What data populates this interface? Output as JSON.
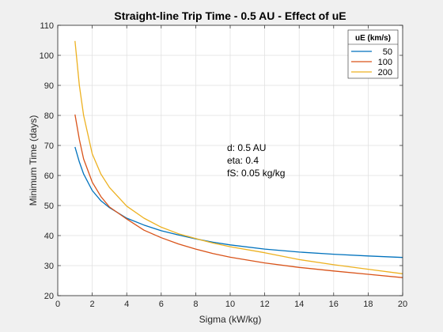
{
  "chart_data": {
    "type": "line",
    "title": "Straight-line Trip Time - 0.5 AU - Effect of uE",
    "xlabel": "Sigma (kW/kg)",
    "ylabel": "Minimum Time (days)",
    "xlim": [
      0,
      20
    ],
    "ylim": [
      20,
      110
    ],
    "xticks": [
      "0",
      "2",
      "4",
      "6",
      "8",
      "10",
      "12",
      "14",
      "16",
      "18",
      "20"
    ],
    "yticks": [
      "20",
      "30",
      "40",
      "50",
      "60",
      "70",
      "80",
      "90",
      "100",
      "110"
    ],
    "grid": true,
    "legend": {
      "title": "uE (km/s)",
      "placement": "top-right"
    },
    "annotation": [
      "d:   0.5 AU",
      "eta:  0.4",
      "fS:  0.05 kg/kg"
    ],
    "x": [
      1,
      1.25,
      1.5,
      2,
      2.5,
      3,
      4,
      5,
      6,
      7,
      8,
      9,
      10,
      12,
      14,
      16,
      18,
      20
    ],
    "series": [
      {
        "name": "50",
        "color": "#0072BD",
        "values": [
          69.5,
          64.5,
          60.5,
          55,
          51.6,
          49.3,
          45.8,
          43.5,
          41.6,
          40.2,
          38.9,
          37.8,
          36.9,
          35.5,
          34.5,
          33.8,
          33.2,
          32.7
        ]
      },
      {
        "name": "100",
        "color": "#D95319",
        "values": [
          80.3,
          72,
          65.5,
          57.8,
          53,
          49.5,
          45.5,
          41.8,
          39.3,
          37.2,
          35.5,
          34,
          32.8,
          30.9,
          29.4,
          28.2,
          27.1,
          26
        ]
      },
      {
        "name": "200",
        "color": "#EDB120",
        "values": [
          104.8,
          90,
          80,
          67.2,
          60.5,
          56,
          49.8,
          45.8,
          42.8,
          40.6,
          39,
          37.5,
          36.3,
          34.3,
          32,
          30.3,
          28.8,
          27.3
        ]
      }
    ]
  }
}
